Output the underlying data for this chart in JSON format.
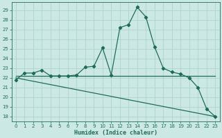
{
  "xlabel": "Humidex (Indice chaleur)",
  "background_color": "#cce8e4",
  "grid_color": "#aed4ce",
  "line_color": "#1e6b5a",
  "x_ticks": [
    0,
    1,
    2,
    3,
    4,
    5,
    6,
    7,
    8,
    9,
    10,
    11,
    12,
    13,
    14,
    15,
    16,
    17,
    18,
    19,
    20,
    21,
    22,
    23
  ],
  "y_ticks": [
    18,
    19,
    20,
    21,
    22,
    23,
    24,
    25,
    26,
    27,
    28,
    29
  ],
  "ylim": [
    17.5,
    29.8
  ],
  "xlim": [
    -0.5,
    23.5
  ],
  "series1_x": [
    0,
    1,
    2,
    3,
    4,
    5,
    6,
    7,
    8,
    9,
    10,
    11,
    12,
    13,
    14,
    15,
    16,
    17,
    18,
    19,
    20,
    21,
    22,
    23
  ],
  "series1_y": [
    21.8,
    22.5,
    22.5,
    22.8,
    22.2,
    22.2,
    22.2,
    22.3,
    23.1,
    23.2,
    25.1,
    22.3,
    27.2,
    27.5,
    29.3,
    28.3,
    25.2,
    23.0,
    22.6,
    22.4,
    22.0,
    21.0,
    18.8,
    18.0
  ],
  "series2_x": [
    0,
    23
  ],
  "series2_y": [
    22.2,
    22.2
  ],
  "series3_x": [
    0,
    23
  ],
  "series3_y": [
    22.0,
    18.0
  ],
  "marker_size": 2.2,
  "line_width": 0.9
}
